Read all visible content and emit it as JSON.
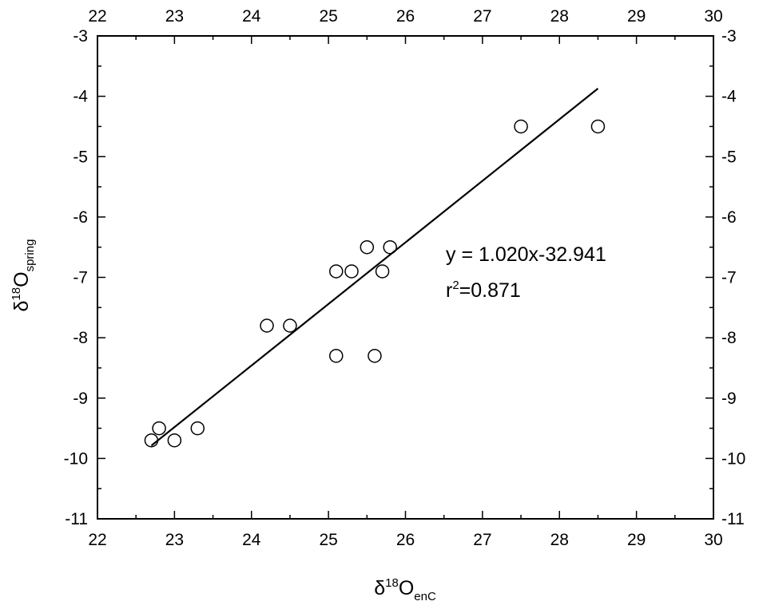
{
  "chart_data": {
    "type": "scatter",
    "x_label": {
      "base": "δ",
      "sup": "18",
      "main": "O",
      "sub": "enC"
    },
    "y_label": {
      "base": "δ",
      "sup": "18",
      "main": "O",
      "sub": "spring"
    },
    "series": [
      {
        "color": "#000000",
        "x": [
          22.7,
          22.8,
          23.0,
          23.3,
          24.2,
          24.5,
          25.1,
          25.3,
          25.5,
          25.8,
          25.7,
          25.1,
          25.6,
          27.5,
          28.5
        ],
        "values": [
          -9.7,
          -9.5,
          -9.7,
          -9.5,
          -7.8,
          -7.8,
          -6.9,
          -6.9,
          -6.5,
          -6.5,
          -6.9,
          -8.3,
          -8.3,
          -4.5,
          -4.5
        ]
      }
    ],
    "fit_line": {
      "color": "#000000",
      "x": [
        22.7,
        28.5
      ],
      "values": [
        -9.787,
        -3.871
      ]
    },
    "annotations": [
      {
        "parts": [
          "y = 1.020x-32.941"
        ]
      },
      {
        "parts": [
          "r",
          "2",
          "=0.871"
        ]
      }
    ],
    "xlim": [
      22,
      30
    ],
    "ylim": [
      -11,
      -3
    ],
    "xticks": [
      22,
      23,
      24,
      25,
      26,
      27,
      28,
      29,
      30
    ],
    "yticks": [
      -3,
      -4,
      -5,
      -6,
      -7,
      -8,
      -9,
      -10,
      -11
    ],
    "xminorticks": [
      22.5,
      23.5,
      24.5,
      25.5,
      26.5,
      27.5,
      28.5,
      29.5
    ],
    "yminorticks": [
      -3.5,
      -4.5,
      -5.5,
      -6.5,
      -7.5,
      -8.5,
      -9.5,
      -10.5
    ]
  }
}
